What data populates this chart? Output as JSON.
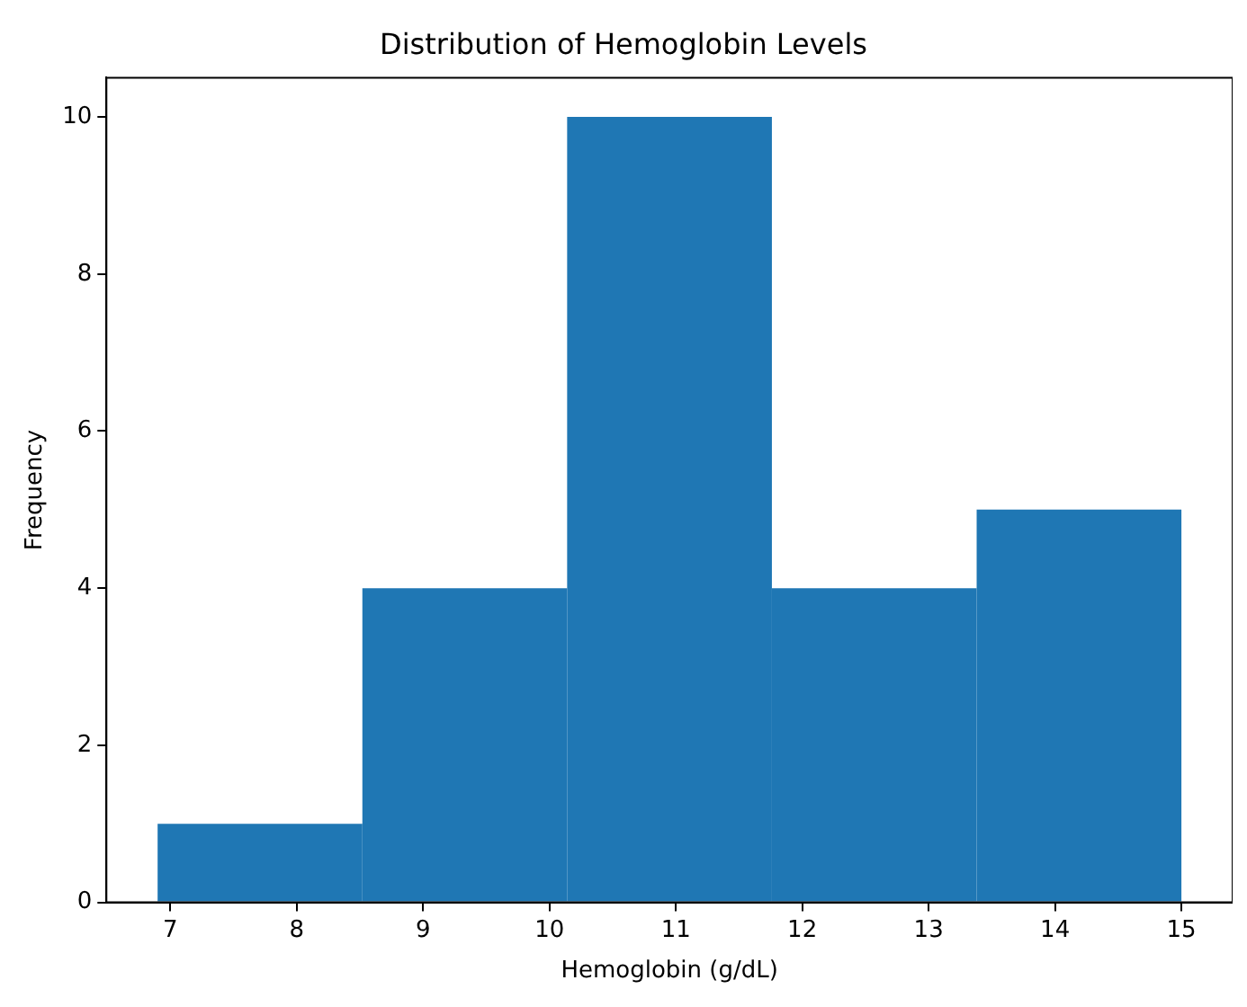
{
  "chart_data": {
    "type": "histogram",
    "title": "Distribution of Hemoglobin Levels",
    "xlabel": "Hemoglobin (g/dL)",
    "ylabel": "Frequency",
    "bins": [
      6.9,
      8.52,
      10.14,
      11.76,
      13.38,
      15.0
    ],
    "values": [
      1,
      4,
      10,
      4,
      5
    ],
    "color": "#1f77b4",
    "xlim": [
      6.495,
      15.405
    ],
    "xticks": [
      7,
      8,
      9,
      10,
      11,
      12,
      13,
      14,
      15
    ],
    "ylim": [
      0,
      10.5
    ],
    "yticks": [
      0,
      2,
      4,
      6,
      8,
      10
    ],
    "grid": false,
    "legend": false
  }
}
